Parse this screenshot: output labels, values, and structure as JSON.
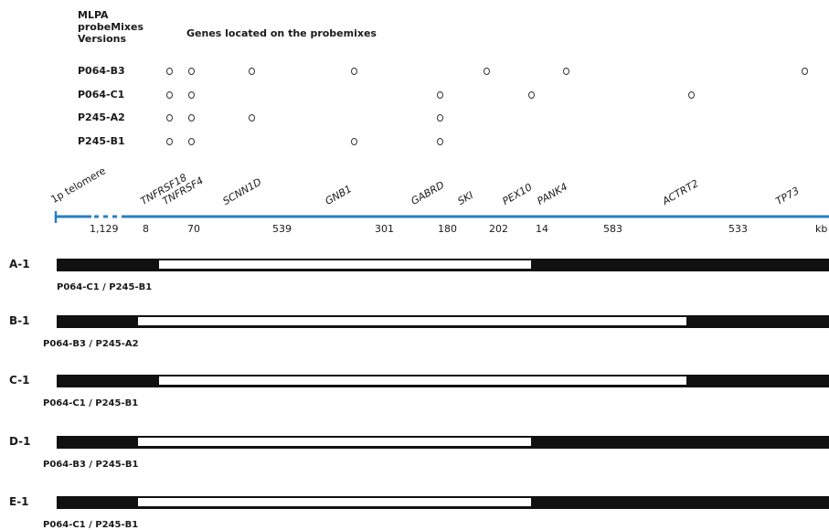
{
  "header": {
    "versions_label_1": "MLPA",
    "versions_label_2": "probeMixes",
    "versions_label_3": "Versions",
    "genes_label": "Genes  located on the probemixes"
  },
  "probemixes": [
    {
      "name": "P064-B3",
      "genes": [
        "TNFRSF18",
        "TNFRSF4",
        "SCNN1D",
        "GNB1",
        "SKI",
        "PANK4",
        "TP73"
      ]
    },
    {
      "name": "P064-C1",
      "genes": [
        "TNFRSF18",
        "TNFRSF4",
        "GABRD",
        "PEX10",
        "ACTRT2"
      ]
    },
    {
      "name": "P245-A2",
      "genes": [
        "TNFRSF18",
        "TNFRSF4",
        "SCNN1D",
        "GABRD"
      ]
    },
    {
      "name": "P245-B1",
      "genes": [
        "TNFRSF18",
        "TNFRSF4",
        "GNB1",
        "GABRD"
      ]
    }
  ],
  "map": {
    "telomere_label": "1p telomere",
    "unit": "kb",
    "genes": [
      "TNFRSF18",
      "TNFRSF4",
      "SCNN1D",
      "GNB1",
      "GABRD",
      "SKI",
      "PEX10",
      "PANK4",
      "ACTRT2",
      "TP73"
    ],
    "distances": [
      "1,129",
      "8",
      "70",
      "539",
      "301",
      "180",
      "202",
      "14",
      "583",
      "533"
    ]
  },
  "patients": [
    {
      "id": "A-1",
      "probemixes": "P064-C1 / P245-B1",
      "deletion_from": "TNFRSF4",
      "deletion_to": "PEX10"
    },
    {
      "id": "B-1",
      "probemixes": "P064-B3 / P245-A2",
      "deletion_from": "TNFRSF18",
      "deletion_to": "ACTRT2"
    },
    {
      "id": "C-1",
      "probemixes": "P064-C1 / P245-B1",
      "deletion_from": "TNFRSF4",
      "deletion_to": "ACTRT2"
    },
    {
      "id": "D-1",
      "probemixes": "P064-B3 / P245-B1",
      "deletion_from": "TNFRSF18",
      "deletion_to": "PEX10"
    },
    {
      "id": "E-1",
      "probemixes": "P064-C1 / P245-B1",
      "deletion_from": "TNFRSF18",
      "deletion_to": "PEX10"
    }
  ],
  "colors": {
    "line": "#2a7fc1",
    "bar": "#111111"
  }
}
